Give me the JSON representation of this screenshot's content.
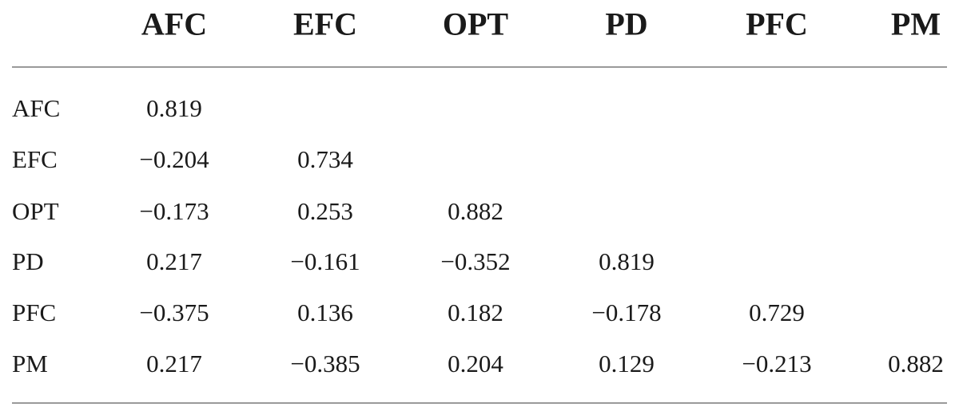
{
  "table": {
    "columns": [
      "AFC",
      "EFC",
      "OPT",
      "PD",
      "PFC",
      "PM"
    ],
    "rows": [
      {
        "label": "AFC",
        "cells": [
          "0.819"
        ]
      },
      {
        "label": "EFC",
        "cells": [
          "−0.204",
          "0.734"
        ]
      },
      {
        "label": "OPT",
        "cells": [
          "−0.173",
          "0.253",
          "0.882"
        ]
      },
      {
        "label": "PD",
        "cells": [
          "0.217",
          "−0.161",
          "−0.352",
          "0.819"
        ]
      },
      {
        "label": "PFC",
        "cells": [
          "−0.375",
          "0.136",
          "0.182",
          "−0.178",
          "0.729"
        ]
      },
      {
        "label": "PM",
        "cells": [
          "0.217",
          "−0.385",
          "0.204",
          "0.129",
          "−0.213",
          "0.882"
        ]
      }
    ]
  }
}
